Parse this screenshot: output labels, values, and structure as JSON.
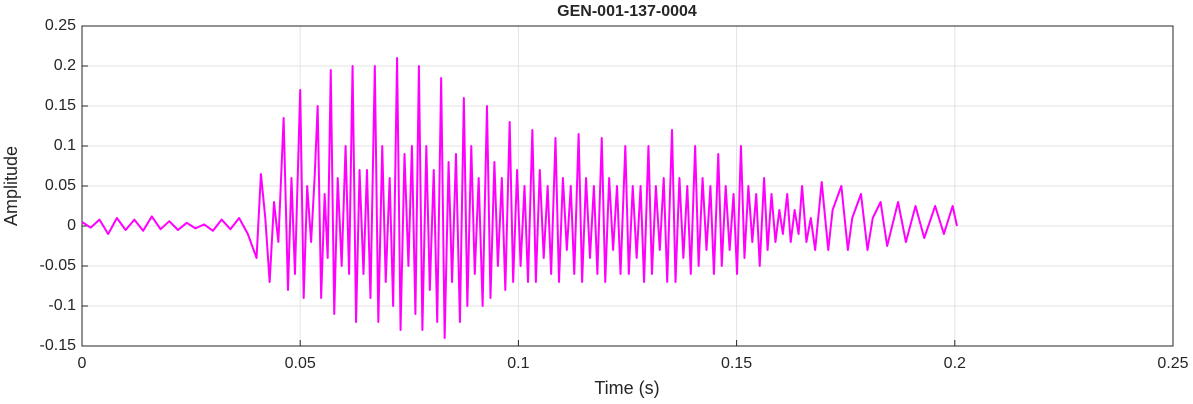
{
  "chart_data": {
    "type": "line",
    "title": "GEN-001-137-0004",
    "x_label": "Time (s)",
    "y_label": "Amplitude",
    "xlim": [
      0,
      0.25
    ],
    "xticks": [
      0,
      0.05,
      0.1,
      0.15,
      0.2,
      0.25
    ],
    "ylim": [
      -0.15,
      0.25
    ],
    "yticks": [
      -0.15,
      -0.1,
      -0.05,
      0,
      0.05,
      0.1,
      0.15,
      0.2,
      0.25
    ],
    "grid": true,
    "series": [
      {
        "color": "#ff00ff",
        "x": [
          0,
          0.002,
          0.004,
          0.006,
          0.008,
          0.01,
          0.012,
          0.014,
          0.016,
          0.018,
          0.02,
          0.022,
          0.024,
          0.026,
          0.028,
          0.03,
          0.032,
          0.034,
          0.036,
          0.038,
          0.04,
          0.041,
          0.042,
          0.043,
          0.044,
          0.045,
          0.0462,
          0.0472,
          0.048,
          0.0488,
          0.05,
          0.0508,
          0.0516,
          0.0525,
          0.0533,
          0.054,
          0.0548,
          0.0556,
          0.0563,
          0.057,
          0.0578,
          0.0586,
          0.0595,
          0.0604,
          0.0612,
          0.062,
          0.0628,
          0.0636,
          0.0645,
          0.0653,
          0.0661,
          0.0671,
          0.0679,
          0.0688,
          0.0696,
          0.0705,
          0.0713,
          0.0722,
          0.073,
          0.0739,
          0.0748,
          0.0756,
          0.0764,
          0.0772,
          0.078,
          0.0789,
          0.0797,
          0.0806,
          0.0814,
          0.0823,
          0.0831,
          0.084,
          0.0848,
          0.0857,
          0.0866,
          0.0875,
          0.0883,
          0.0892,
          0.09,
          0.0909,
          0.0918,
          0.0928,
          0.0936,
          0.0945,
          0.0953,
          0.0962,
          0.097,
          0.098,
          0.0988,
          0.0997,
          0.1005,
          0.1014,
          0.1022,
          0.1032,
          0.104,
          0.1049,
          0.1058,
          0.1067,
          0.1075,
          0.1085,
          0.1093,
          0.1102,
          0.1111,
          0.112,
          0.1128,
          0.1138,
          0.1146,
          0.1155,
          0.1164,
          0.1173,
          0.1181,
          0.1191,
          0.1199,
          0.1208,
          0.1217,
          0.1226,
          0.1234,
          0.1245,
          0.1253,
          0.1262,
          0.1271,
          0.128,
          0.1288,
          0.1298,
          0.1306,
          0.1315,
          0.1324,
          0.1333,
          0.1341,
          0.1352,
          0.136,
          0.1369,
          0.1378,
          0.1387,
          0.1395,
          0.1405,
          0.1413,
          0.1422,
          0.1431,
          0.144,
          0.1448,
          0.1458,
          0.1466,
          0.1475,
          0.1484,
          0.1493,
          0.1501,
          0.151,
          0.1518,
          0.1527,
          0.1536,
          0.1545,
          0.1553,
          0.1563,
          0.1571,
          0.158,
          0.1589,
          0.1598,
          0.1606,
          0.1616,
          0.1624,
          0.1633,
          0.1642,
          0.165,
          0.166,
          0.167,
          0.168,
          0.1695,
          0.171,
          0.172,
          0.174,
          0.1755,
          0.1765,
          0.1785,
          0.18,
          0.1812,
          0.183,
          0.1845,
          0.187,
          0.1888,
          0.191,
          0.193,
          0.1955,
          0.1975,
          0.1995,
          0.2005
        ],
        "values": [
          0.005,
          -0.002,
          0.008,
          -0.01,
          0.01,
          -0.005,
          0.008,
          -0.006,
          0.012,
          -0.004,
          0.006,
          -0.005,
          0.004,
          -0.003,
          0.002,
          -0.006,
          0.008,
          -0.004,
          0.01,
          -0.01,
          -0.04,
          0.065,
          0.01,
          -0.07,
          0.03,
          -0.02,
          0.135,
          -0.08,
          0.06,
          -0.06,
          0.17,
          -0.09,
          0.05,
          -0.02,
          0.06,
          0.15,
          -0.09,
          0.04,
          -0.04,
          0.195,
          -0.11,
          0.06,
          -0.05,
          0.1,
          -0.06,
          0.2,
          -0.12,
          0.07,
          -0.06,
          0.07,
          -0.09,
          0.2,
          -0.12,
          0.1,
          -0.07,
          0.06,
          -0.1,
          0.21,
          -0.13,
          0.09,
          -0.05,
          0.1,
          -0.11,
          0.2,
          -0.13,
          0.1,
          -0.08,
          0.07,
          -0.12,
          0.185,
          -0.14,
          0.08,
          -0.07,
          0.09,
          -0.12,
          0.16,
          -0.1,
          0.1,
          -0.06,
          0.06,
          -0.1,
          0.15,
          -0.09,
          0.08,
          -0.05,
          0.06,
          -0.08,
          0.13,
          -0.07,
          0.07,
          -0.05,
          0.05,
          -0.07,
          0.12,
          -0.07,
          0.07,
          -0.04,
          0.05,
          -0.06,
          0.11,
          -0.07,
          0.06,
          -0.03,
          0.05,
          -0.06,
          0.115,
          -0.07,
          0.06,
          -0.04,
          0.05,
          -0.06,
          0.11,
          -0.07,
          0.06,
          -0.03,
          0.05,
          -0.06,
          0.1,
          -0.06,
          0.05,
          -0.04,
          0.05,
          -0.07,
          0.1,
          -0.06,
          0.05,
          -0.03,
          0.06,
          -0.07,
          0.12,
          -0.07,
          0.06,
          -0.04,
          0.05,
          -0.06,
          0.1,
          -0.05,
          0.06,
          -0.03,
          0.05,
          -0.06,
          0.09,
          -0.05,
          0.05,
          -0.03,
          0.04,
          -0.06,
          0.1,
          -0.04,
          0.05,
          -0.02,
          0.04,
          -0.05,
          0.06,
          -0.03,
          0.04,
          -0.02,
          0.02,
          -0.01,
          0.04,
          -0.02,
          0.02,
          -0.01,
          0.05,
          -0.02,
          0.01,
          -0.03,
          0.055,
          -0.03,
          0.02,
          0.05,
          -0.03,
          0.01,
          0.04,
          -0.03,
          0.01,
          0.03,
          -0.025,
          0.03,
          -0.02,
          0.025,
          -0.015,
          0.025,
          -0.01,
          0.025,
          0.0
        ]
      }
    ]
  }
}
